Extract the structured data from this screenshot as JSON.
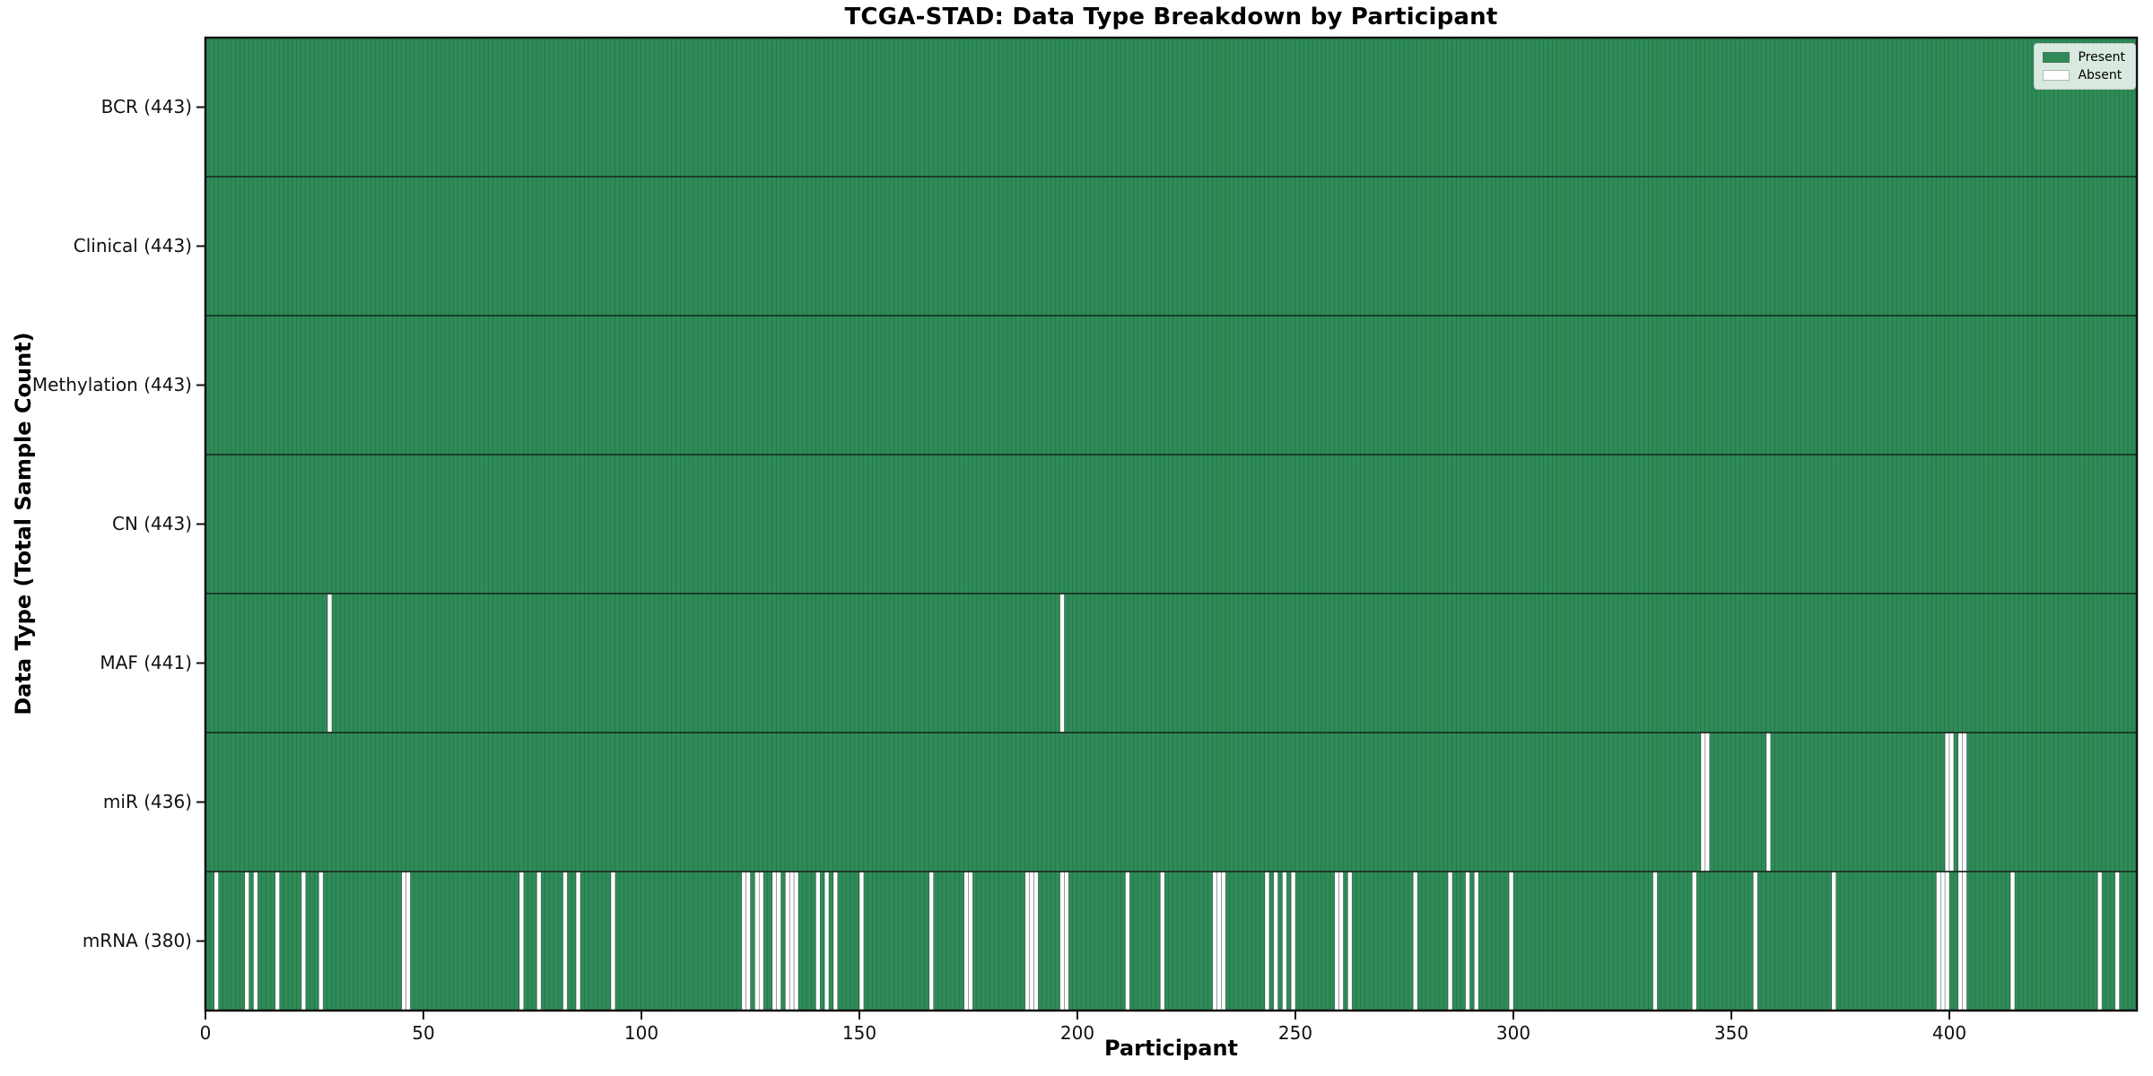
{
  "chart_data": {
    "type": "heatmap",
    "title": "TCGA-STAD: Data Type Breakdown by Participant",
    "xlabel": "Participant",
    "ylabel": "Data Type (Total Sample Count)",
    "x_ticks": [
      0,
      50,
      100,
      150,
      200,
      250,
      300,
      350,
      400
    ],
    "x_range": [
      0,
      443
    ],
    "n_participants": 443,
    "cell_states": {
      "present": 1,
      "absent": 0
    },
    "legend": {
      "position": "upper right",
      "entries": [
        {
          "label": "Present",
          "color": "#2e8b57"
        },
        {
          "label": "Absent",
          "color": "#ffffff"
        }
      ]
    },
    "colors": {
      "present": "#2e8b57",
      "absent": "#ffffff",
      "bar_edge": "#10301f",
      "axis": "#111111",
      "background": "#ffffff"
    },
    "grid": false,
    "rows": [
      {
        "data_type": "BCR",
        "label": "BCR (443)",
        "total_samples": 443,
        "absent_participants": []
      },
      {
        "data_type": "Clinical",
        "label": "Clinical (443)",
        "total_samples": 443,
        "absent_participants": []
      },
      {
        "data_type": "Methylation",
        "label": "Methylation (443)",
        "total_samples": 443,
        "absent_participants": []
      },
      {
        "data_type": "CN",
        "label": "CN (443)",
        "total_samples": 443,
        "absent_participants": []
      },
      {
        "data_type": "MAF",
        "label": "MAF (441)",
        "total_samples": 441,
        "absent_participants": [
          28,
          196
        ]
      },
      {
        "data_type": "miR",
        "label": "miR (436)",
        "total_samples": 436,
        "absent_participants": [
          343,
          344,
          358,
          399,
          400,
          402,
          403
        ]
      },
      {
        "data_type": "mRNA",
        "label": "mRNA (380)",
        "total_samples": 380,
        "absent_participants": [
          2,
          9,
          11,
          16,
          22,
          26,
          45,
          46,
          72,
          76,
          82,
          85,
          93,
          123,
          124,
          126,
          127,
          130,
          131,
          133,
          134,
          135,
          140,
          142,
          144,
          150,
          166,
          174,
          175,
          188,
          189,
          190,
          196,
          197,
          211,
          219,
          231,
          232,
          233,
          243,
          245,
          247,
          249,
          259,
          260,
          262,
          277,
          285,
          289,
          291,
          299,
          332,
          341,
          355,
          373,
          397,
          398,
          399,
          402,
          403,
          414,
          434,
          438
        ]
      }
    ]
  }
}
